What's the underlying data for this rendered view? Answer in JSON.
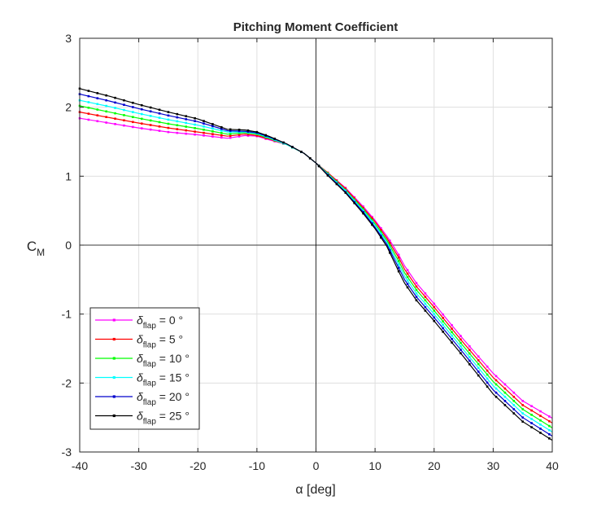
{
  "chart_data": {
    "type": "line",
    "title": "Pitching Moment Coefficient",
    "xlabel": "α [deg]",
    "ylabel": "C",
    "ylabel_sub": "M",
    "xlim": [
      -40,
      40
    ],
    "ylim": [
      -3,
      3
    ],
    "xticks": [
      -40,
      -30,
      -20,
      -10,
      0,
      10,
      20,
      30,
      40
    ],
    "yticks": [
      -3,
      -2,
      -1,
      0,
      1,
      2,
      3
    ],
    "grid": true,
    "legend_position": "bottom-left",
    "legend_symbol": "δ",
    "legend_sub": "flap",
    "x": [
      -40,
      -35,
      -30,
      -25,
      -20,
      -15,
      -12,
      -10,
      -8,
      -5,
      -2,
      0,
      2,
      5,
      8,
      10,
      12,
      13,
      14,
      15,
      17,
      20,
      25,
      30,
      35,
      40
    ],
    "series": [
      {
        "name": "= 0 °",
        "color": "#ff00ff",
        "values": [
          1.84,
          1.77,
          1.7,
          1.64,
          1.6,
          1.55,
          1.59,
          1.58,
          1.53,
          1.46,
          1.33,
          1.19,
          1.05,
          0.83,
          0.56,
          0.36,
          0.13,
          0.0,
          -0.14,
          -0.3,
          -0.55,
          -0.85,
          -1.37,
          -1.86,
          -2.26,
          -2.51
        ]
      },
      {
        "name": "= 5 °",
        "color": "#ff0000",
        "values": [
          1.93,
          1.85,
          1.77,
          1.7,
          1.64,
          1.58,
          1.61,
          1.59,
          1.54,
          1.46,
          1.33,
          1.19,
          1.05,
          0.82,
          0.54,
          0.34,
          0.1,
          -0.04,
          -0.18,
          -0.35,
          -0.6,
          -0.9,
          -1.42,
          -1.92,
          -2.32,
          -2.58
        ]
      },
      {
        "name": "= 10 °",
        "color": "#00ff00",
        "values": [
          2.02,
          1.93,
          1.84,
          1.76,
          1.69,
          1.61,
          1.63,
          1.61,
          1.55,
          1.46,
          1.33,
          1.19,
          1.04,
          0.8,
          0.52,
          0.31,
          0.07,
          -0.08,
          -0.23,
          -0.4,
          -0.65,
          -0.95,
          -1.47,
          -1.98,
          -2.38,
          -2.65
        ]
      },
      {
        "name": "= 15 °",
        "color": "#00ffff",
        "values": [
          2.1,
          2.01,
          1.91,
          1.82,
          1.74,
          1.64,
          1.64,
          1.62,
          1.56,
          1.46,
          1.33,
          1.19,
          1.03,
          0.79,
          0.5,
          0.29,
          0.04,
          -0.12,
          -0.28,
          -0.45,
          -0.7,
          -1.0,
          -1.52,
          -2.04,
          -2.44,
          -2.71
        ]
      },
      {
        "name": "= 20 °",
        "color": "#0000cc",
        "values": [
          2.19,
          2.09,
          1.98,
          1.88,
          1.79,
          1.66,
          1.65,
          1.63,
          1.57,
          1.47,
          1.33,
          1.19,
          1.02,
          0.77,
          0.48,
          0.26,
          0.01,
          -0.16,
          -0.33,
          -0.5,
          -0.75,
          -1.05,
          -1.57,
          -2.1,
          -2.5,
          -2.77
        ]
      },
      {
        "name": "= 25 °",
        "color": "#000000",
        "values": [
          2.27,
          2.16,
          2.04,
          1.93,
          1.83,
          1.68,
          1.67,
          1.64,
          1.58,
          1.47,
          1.33,
          1.19,
          1.01,
          0.76,
          0.46,
          0.24,
          -0.02,
          -0.2,
          -0.38,
          -0.55,
          -0.8,
          -1.1,
          -1.62,
          -2.16,
          -2.56,
          -2.83
        ]
      }
    ]
  }
}
